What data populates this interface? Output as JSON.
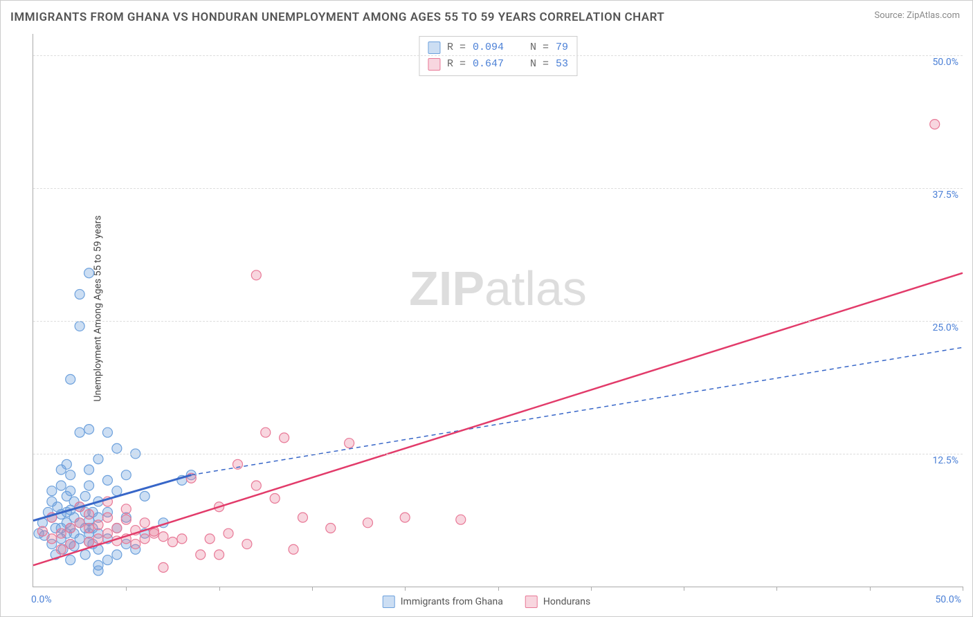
{
  "title": "IMMIGRANTS FROM GHANA VS HONDURAN UNEMPLOYMENT AMONG AGES 55 TO 59 YEARS CORRELATION CHART",
  "source": "Source: ZipAtlas.com",
  "ylabel": "Unemployment Among Ages 55 to 59 years",
  "watermark_zip": "ZIP",
  "watermark_atlas": "atlas",
  "chart": {
    "type": "scatter",
    "xlim": [
      0,
      50
    ],
    "ylim": [
      0,
      52
    ],
    "x_tick_positions": [
      0,
      5,
      10,
      15,
      20,
      25,
      30,
      35,
      40,
      45,
      50
    ],
    "y_grid": [
      12.5,
      25.0,
      37.5,
      50.0
    ],
    "y_labels": [
      "12.5%",
      "25.0%",
      "37.5%",
      "50.0%"
    ],
    "x0_label": "0.0%",
    "x50_label": "50.0%",
    "background_color": "#ffffff",
    "grid_color": "#dddddd"
  },
  "series": [
    {
      "name": "Immigrants from Ghana",
      "swatch_label": "Immigrants from Ghana",
      "fill": "rgba(108,160,220,0.35)",
      "stroke": "#6ca0dc",
      "r_label": "R =",
      "r_value": "0.094",
      "n_label": "N =",
      "n_value": "79",
      "marker_r": 7,
      "points": [
        [
          0.3,
          5.0
        ],
        [
          0.5,
          6.0
        ],
        [
          0.6,
          4.8
        ],
        [
          0.8,
          7.0
        ],
        [
          1.0,
          4.0
        ],
        [
          1.0,
          6.5
        ],
        [
          1.0,
          8.0
        ],
        [
          1.0,
          9.0
        ],
        [
          1.2,
          3.0
        ],
        [
          1.2,
          5.5
        ],
        [
          1.3,
          7.5
        ],
        [
          1.5,
          4.5
        ],
        [
          1.5,
          5.5
        ],
        [
          1.5,
          6.8
        ],
        [
          1.5,
          9.5
        ],
        [
          1.5,
          11.0
        ],
        [
          1.6,
          3.5
        ],
        [
          1.8,
          5.0
        ],
        [
          1.8,
          6.0
        ],
        [
          1.8,
          7.0
        ],
        [
          1.8,
          8.5
        ],
        [
          1.8,
          11.5
        ],
        [
          2.0,
          2.5
        ],
        [
          2.0,
          4.0
        ],
        [
          2.0,
          5.5
        ],
        [
          2.0,
          7.2
        ],
        [
          2.0,
          9.0
        ],
        [
          2.0,
          10.5
        ],
        [
          2.0,
          19.5
        ],
        [
          2.2,
          3.8
        ],
        [
          2.2,
          5.0
        ],
        [
          2.2,
          6.5
        ],
        [
          2.2,
          8.0
        ],
        [
          2.5,
          4.5
        ],
        [
          2.5,
          6.0
        ],
        [
          2.5,
          7.5
        ],
        [
          2.5,
          14.5
        ],
        [
          2.5,
          24.5
        ],
        [
          2.5,
          27.5
        ],
        [
          2.8,
          3.0
        ],
        [
          2.8,
          5.5
        ],
        [
          2.8,
          7.0
        ],
        [
          2.8,
          8.5
        ],
        [
          3.0,
          4.2
        ],
        [
          3.0,
          5.0
        ],
        [
          3.0,
          6.2
        ],
        [
          3.0,
          9.5
        ],
        [
          3.0,
          11.0
        ],
        [
          3.0,
          14.8
        ],
        [
          3.0,
          29.5
        ],
        [
          3.2,
          4.0
        ],
        [
          3.2,
          5.5
        ],
        [
          3.2,
          7.0
        ],
        [
          3.5,
          2.0
        ],
        [
          3.5,
          1.5
        ],
        [
          3.5,
          3.5
        ],
        [
          3.5,
          5.0
        ],
        [
          3.5,
          6.5
        ],
        [
          3.5,
          8.0
        ],
        [
          3.5,
          12.0
        ],
        [
          4.0,
          2.5
        ],
        [
          4.0,
          4.5
        ],
        [
          4.0,
          7.0
        ],
        [
          4.0,
          10.0
        ],
        [
          4.0,
          14.5
        ],
        [
          4.5,
          3.0
        ],
        [
          4.5,
          5.5
        ],
        [
          4.5,
          9.0
        ],
        [
          4.5,
          13.0
        ],
        [
          5.0,
          4.0
        ],
        [
          5.0,
          6.5
        ],
        [
          5.0,
          10.5
        ],
        [
          5.5,
          3.5
        ],
        [
          5.5,
          12.5
        ],
        [
          6.0,
          5.0
        ],
        [
          6.0,
          8.5
        ],
        [
          7.0,
          6.0
        ],
        [
          8.0,
          10.0
        ],
        [
          8.5,
          10.5
        ]
      ],
      "trend_solid": {
        "x1": 0,
        "y1": 6.2,
        "x2": 8.5,
        "y2": 10.5,
        "color": "#3766c8",
        "width": 3
      },
      "trend_dash": {
        "x1": 8.5,
        "y1": 10.5,
        "x2": 50,
        "y2": 22.5,
        "color": "#3766c8",
        "width": 1.5,
        "dash": "6,5"
      }
    },
    {
      "name": "Hondurans",
      "swatch_label": "Hondurans",
      "fill": "rgba(232,120,150,0.30)",
      "stroke": "#e87896",
      "r_label": "R =",
      "r_value": "0.647",
      "n_label": "N =",
      "n_value": "53",
      "marker_r": 7,
      "points": [
        [
          0.5,
          5.2
        ],
        [
          1.0,
          4.5
        ],
        [
          1.0,
          6.5
        ],
        [
          1.5,
          3.5
        ],
        [
          1.5,
          5.0
        ],
        [
          2.0,
          5.5
        ],
        [
          2.0,
          4.0
        ],
        [
          2.5,
          6.0
        ],
        [
          2.5,
          7.5
        ],
        [
          3.0,
          4.2
        ],
        [
          3.0,
          5.5
        ],
        [
          3.0,
          6.8
        ],
        [
          3.5,
          4.5
        ],
        [
          3.5,
          5.8
        ],
        [
          4.0,
          5.0
        ],
        [
          4.0,
          6.5
        ],
        [
          4.0,
          8.0
        ],
        [
          4.5,
          4.3
        ],
        [
          4.5,
          5.5
        ],
        [
          5.0,
          4.5
        ],
        [
          5.0,
          6.3
        ],
        [
          5.0,
          7.3
        ],
        [
          5.5,
          4.0
        ],
        [
          5.5,
          5.3
        ],
        [
          6.0,
          4.5
        ],
        [
          6.0,
          6.0
        ],
        [
          6.5,
          5.0
        ],
        [
          6.5,
          5.2
        ],
        [
          7.0,
          4.7
        ],
        [
          7.0,
          1.8
        ],
        [
          7.5,
          4.2
        ],
        [
          8.0,
          4.5
        ],
        [
          8.5,
          10.2
        ],
        [
          9.0,
          3.0
        ],
        [
          9.5,
          4.5
        ],
        [
          10.0,
          3.0
        ],
        [
          10.0,
          7.5
        ],
        [
          10.5,
          5.0
        ],
        [
          11.0,
          11.5
        ],
        [
          11.5,
          4.0
        ],
        [
          12.0,
          9.5
        ],
        [
          12.0,
          29.3
        ],
        [
          12.5,
          14.5
        ],
        [
          13.0,
          8.3
        ],
        [
          13.5,
          14.0
        ],
        [
          14.0,
          3.5
        ],
        [
          14.5,
          6.5
        ],
        [
          16.0,
          5.5
        ],
        [
          17.0,
          13.5
        ],
        [
          18.0,
          6.0
        ],
        [
          20.0,
          6.5
        ],
        [
          23.0,
          6.3
        ],
        [
          48.5,
          43.5
        ]
      ],
      "trend_solid": {
        "x1": 0,
        "y1": 2.0,
        "x2": 50,
        "y2": 29.5,
        "color": "#e23b6a",
        "width": 2.5
      },
      "trend_dash": null
    }
  ],
  "legend": {
    "ghana_label": "Immigrants from Ghana",
    "honduran_label": "Hondurans"
  }
}
